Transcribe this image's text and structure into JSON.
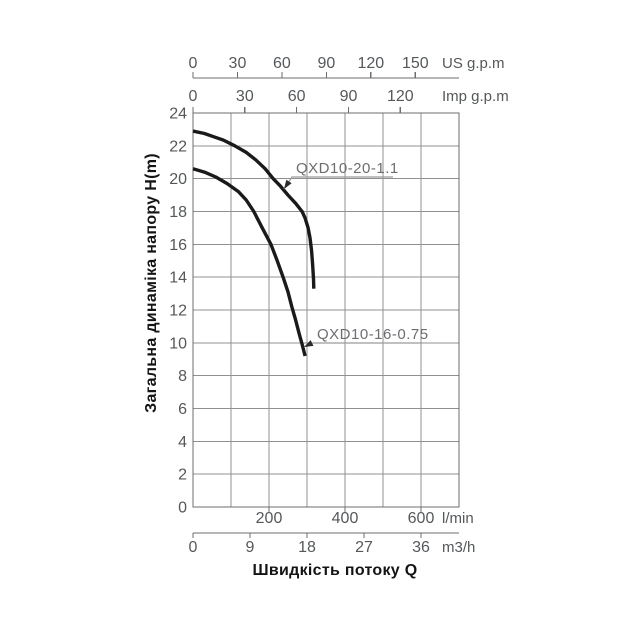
{
  "page": {
    "background": "#ffffff"
  },
  "colors": {
    "grid": "#909090",
    "plot_border": "#6e6e6e",
    "axis_line": "#6e6e6e",
    "curve": "#1a1a1a",
    "tick_text": "#55585a",
    "unit_text": "#55585a",
    "series_label_text": "#6d6d72",
    "leader_line": "#9a9a9a",
    "arrow_fill": "#2b2b2b",
    "title_text": "#141414"
  },
  "chart_data": {
    "type": "line",
    "title": "",
    "xlabel": "Швидкість потоку Q",
    "ylabel": "Загальна динаміка напору H(m)",
    "grid": true,
    "x_range_lmin": [
      0,
      700
    ],
    "grid_step_lmin": 100,
    "y_axis": {
      "min": 0,
      "max": 24,
      "step": 2,
      "tick_labels": [
        "0",
        "2",
        "4",
        "6",
        "8",
        "10",
        "12",
        "14",
        "16",
        "18",
        "20",
        "22",
        "24"
      ]
    },
    "x_axes": [
      {
        "unit": "US g.p.m",
        "position": "top-outer",
        "ticks": [
          0,
          30,
          60,
          90,
          120,
          150
        ],
        "lmin_per_unit": 3.9
      },
      {
        "unit": "Imp g.p.m",
        "position": "top-inner",
        "ticks": [
          0,
          30,
          60,
          90,
          120
        ],
        "lmin_per_unit": 4.546
      },
      {
        "unit": "l/min",
        "position": "bottom-inner",
        "ticks": [
          200,
          400,
          600
        ],
        "lmin_per_unit": 1
      },
      {
        "unit": "m3/h",
        "position": "bottom-outer",
        "ticks": [
          0,
          9,
          18,
          27,
          36
        ],
        "lmin_per_unit": 16.6667
      }
    ],
    "series": [
      {
        "name": "QXD10-20-1.1",
        "x_unit": "l/min",
        "y_unit": "m",
        "points": [
          [
            0,
            22.9
          ],
          [
            30,
            22.75
          ],
          [
            55,
            22.55
          ],
          [
            80,
            22.35
          ],
          [
            110,
            22.0
          ],
          [
            140,
            21.6
          ],
          [
            165,
            21.15
          ],
          [
            190,
            20.6
          ],
          [
            211,
            20.0
          ],
          [
            230,
            19.55
          ],
          [
            250,
            19.0
          ],
          [
            270,
            18.5
          ],
          [
            287,
            18.0
          ],
          [
            295,
            17.6
          ],
          [
            303,
            17.0
          ],
          [
            308,
            16.4
          ],
          [
            312,
            15.6
          ],
          [
            315,
            14.7
          ],
          [
            317,
            13.9
          ],
          [
            318,
            13.3
          ]
        ]
      },
      {
        "name": "QXD10-16-0.75",
        "x_unit": "l/min",
        "y_unit": "m",
        "points": [
          [
            0,
            20.6
          ],
          [
            30,
            20.4
          ],
          [
            60,
            20.1
          ],
          [
            90,
            19.7
          ],
          [
            120,
            19.2
          ],
          [
            140,
            18.7
          ],
          [
            160,
            18.0
          ],
          [
            180,
            17.1
          ],
          [
            205,
            16.0
          ],
          [
            220,
            15.1
          ],
          [
            237,
            14.0
          ],
          [
            250,
            13.1
          ],
          [
            260,
            12.2
          ],
          [
            270,
            11.4
          ],
          [
            280,
            10.5
          ],
          [
            288,
            9.85
          ],
          [
            295,
            9.2
          ]
        ]
      }
    ]
  }
}
